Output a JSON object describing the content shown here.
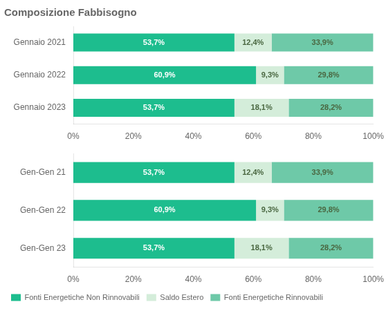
{
  "chart_data": [
    {
      "type": "bar",
      "title": "Composizione Fabbisogno",
      "orientation": "horizontal",
      "stacked": true,
      "categories": [
        "Gennaio 2021",
        "Gennaio 2022",
        "Gennaio 2023"
      ],
      "series": [
        {
          "name": "Fonti Energetiche Non Rinnovabili",
          "color": "#1DBD8E",
          "values": [
            53.7,
            60.9,
            53.7
          ],
          "value_labels": [
            "53,7%",
            "60,9%",
            "53,7%"
          ]
        },
        {
          "name": "Saldo Estero",
          "color": "#D4EDDA",
          "values": [
            12.4,
            9.3,
            18.1
          ],
          "value_labels": [
            "12,4%",
            "9,3%",
            "18,1%"
          ]
        },
        {
          "name": "Fonti Energetiche Rinnovabili",
          "color": "#6EC9A8",
          "values": [
            33.9,
            29.8,
            28.2
          ],
          "value_labels": [
            "33,9%",
            "29,8%",
            "28,2%"
          ]
        }
      ],
      "xlim": [
        0,
        100
      ],
      "xticks": [
        {
          "value": 0,
          "label": "0%"
        },
        {
          "value": 20,
          "label": "20%"
        },
        {
          "value": 40,
          "label": "40%"
        },
        {
          "value": 60,
          "label": "60%"
        },
        {
          "value": 80,
          "label": "80%"
        },
        {
          "value": 100,
          "label": "100%"
        }
      ],
      "grid": false,
      "data_labels": true
    },
    {
      "type": "bar",
      "orientation": "horizontal",
      "stacked": true,
      "categories": [
        "Gen-Gen 21",
        "Gen-Gen 22",
        "Gen-Gen 23"
      ],
      "series": [
        {
          "name": "Fonti Energetiche Non Rinnovabili",
          "color": "#1DBD8E",
          "values": [
            53.7,
            60.9,
            53.7
          ],
          "value_labels": [
            "53,7%",
            "60,9%",
            "53,7%"
          ]
        },
        {
          "name": "Saldo Estero",
          "color": "#D4EDDA",
          "values": [
            12.4,
            9.3,
            18.1
          ],
          "value_labels": [
            "12,4%",
            "9,3%",
            "18,1%"
          ]
        },
        {
          "name": "Fonti Energetiche Rinnovabili",
          "color": "#6EC9A8",
          "values": [
            33.9,
            29.8,
            28.2
          ],
          "value_labels": [
            "33,9%",
            "29,8%",
            "28,2%"
          ]
        }
      ],
      "xlim": [
        0,
        100
      ],
      "xticks": [
        {
          "value": 0,
          "label": "0%"
        },
        {
          "value": 20,
          "label": "20%"
        },
        {
          "value": 40,
          "label": "40%"
        },
        {
          "value": 60,
          "label": "60%"
        },
        {
          "value": 80,
          "label": "80%"
        },
        {
          "value": 100,
          "label": "100%"
        }
      ],
      "grid": false,
      "data_labels": true,
      "legend": "lower left"
    }
  ]
}
